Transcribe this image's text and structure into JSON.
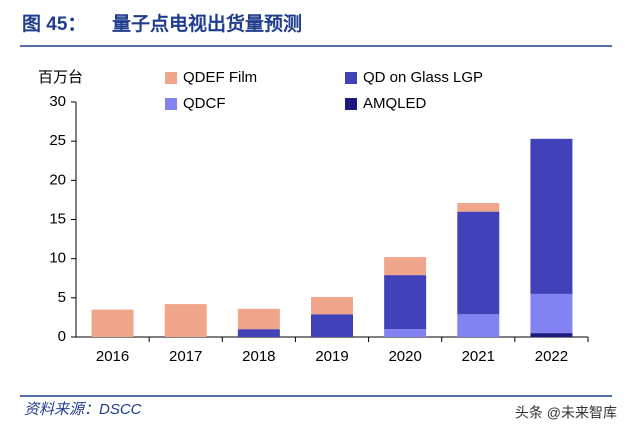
{
  "header": {
    "figure": "图 45：",
    "title": "量子点电视出货量预测"
  },
  "chart_data": {
    "type": "stacked-bar",
    "y_unit": "百万台",
    "categories": [
      "2016",
      "2017",
      "2018",
      "2019",
      "2020",
      "2021",
      "2022"
    ],
    "series": [
      {
        "name": "QDEF Film",
        "color": "#f0a68b",
        "values": [
          3.5,
          4.2,
          2.6,
          2.2,
          2.3,
          1.1,
          0
        ]
      },
      {
        "name": "QD on Glass LGP",
        "color": "#4141b9",
        "values": [
          0,
          0,
          1.0,
          2.9,
          6.9,
          13.1,
          19.8
        ]
      },
      {
        "name": "QDCF",
        "color": "#8282f2",
        "values": [
          0,
          0,
          0,
          0,
          1.0,
          2.9,
          5.0
        ]
      },
      {
        "name": "AMQLED",
        "color": "#1b1b7e",
        "values": [
          0,
          0,
          0,
          0,
          0,
          0,
          0.5
        ]
      }
    ],
    "ylim": [
      0,
      30
    ],
    "yticks": [
      0,
      5,
      10,
      15,
      20,
      25,
      30
    ]
  },
  "footer": {
    "source": "资料来源：DSCC",
    "watermark": "头条 @未来智库"
  }
}
